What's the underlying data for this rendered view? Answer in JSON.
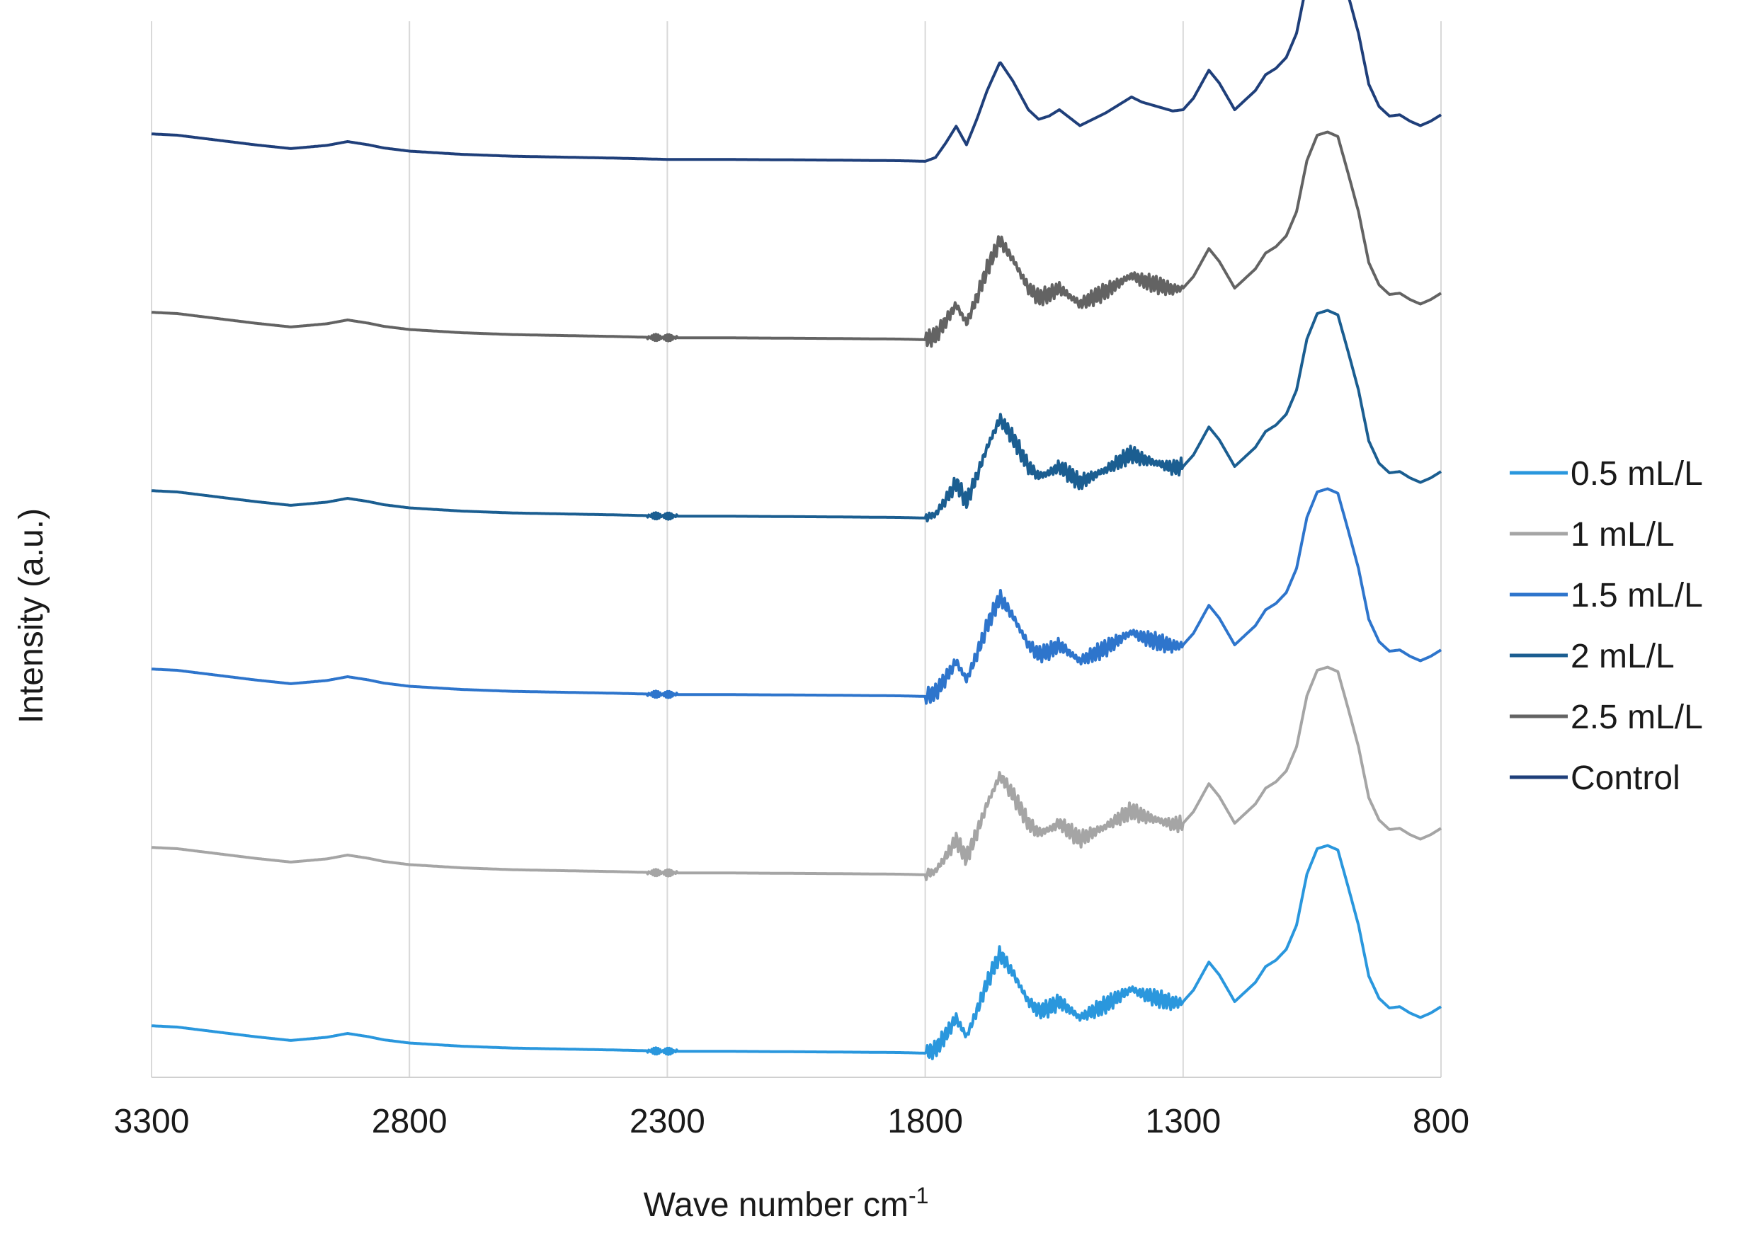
{
  "chart_data": {
    "type": "line",
    "title": "",
    "xlabel": "Wave number cm",
    "xlabel_sup": "-1",
    "ylabel": "Intensity (a.u.)",
    "xlim": [
      3300,
      800
    ],
    "x_reversed": true,
    "x_ticks": [
      3300,
      2800,
      2300,
      1800,
      1300,
      800
    ],
    "grid": "vertical",
    "legend_position": "right",
    "series": [
      {
        "name": "0.5 mL/L",
        "color": "#2a97dd",
        "offset": 0
      },
      {
        "name": "1 mL/L",
        "color": "#a5a5a5",
        "offset": 1
      },
      {
        "name": "1.5 mL/L",
        "color": "#2e75cc",
        "offset": 2
      },
      {
        "name": "2 mL/L",
        "color": "#1b5e91",
        "offset": 3
      },
      {
        "name": "2.5 mL/L",
        "color": "#636363",
        "offset": 4
      },
      {
        "name": "Control",
        "color": "#1f3f7a",
        "offset": 5
      }
    ],
    "profile_x": [
      3300,
      3250,
      3200,
      3100,
      3030,
      2960,
      2920,
      2880,
      2850,
      2800,
      2700,
      2600,
      2400,
      2300,
      2200,
      2000,
      1850,
      1800,
      1780,
      1760,
      1740,
      1720,
      1700,
      1680,
      1655,
      1630,
      1600,
      1580,
      1560,
      1540,
      1500,
      1450,
      1400,
      1380,
      1350,
      1320,
      1300,
      1280,
      1250,
      1230,
      1200,
      1160,
      1140,
      1120,
      1100,
      1080,
      1060,
      1040,
      1020,
      1000,
      980,
      960,
      940,
      920,
      900,
      880,
      860,
      840,
      820,
      800
    ],
    "profile_y": [
      0.62,
      0.6,
      0.55,
      0.45,
      0.39,
      0.44,
      0.5,
      0.45,
      0.4,
      0.35,
      0.3,
      0.27,
      0.24,
      0.22,
      0.22,
      0.21,
      0.2,
      0.19,
      0.25,
      0.48,
      0.74,
      0.45,
      0.85,
      1.3,
      1.75,
      1.45,
      1.0,
      0.85,
      0.9,
      1.0,
      0.75,
      0.95,
      1.2,
      1.12,
      1.05,
      0.98,
      1.0,
      1.18,
      1.62,
      1.42,
      1.0,
      1.3,
      1.55,
      1.65,
      1.82,
      2.2,
      3.0,
      3.4,
      3.45,
      3.38,
      2.8,
      2.2,
      1.4,
      1.05,
      0.9,
      0.92,
      0.82,
      0.75,
      0.82,
      0.92
    ]
  },
  "legend": {
    "items": [
      "0.5 mL/L",
      "1 mL/L",
      "1.5 mL/L",
      "2 mL/L",
      "2.5 mL/L",
      "Control"
    ]
  }
}
